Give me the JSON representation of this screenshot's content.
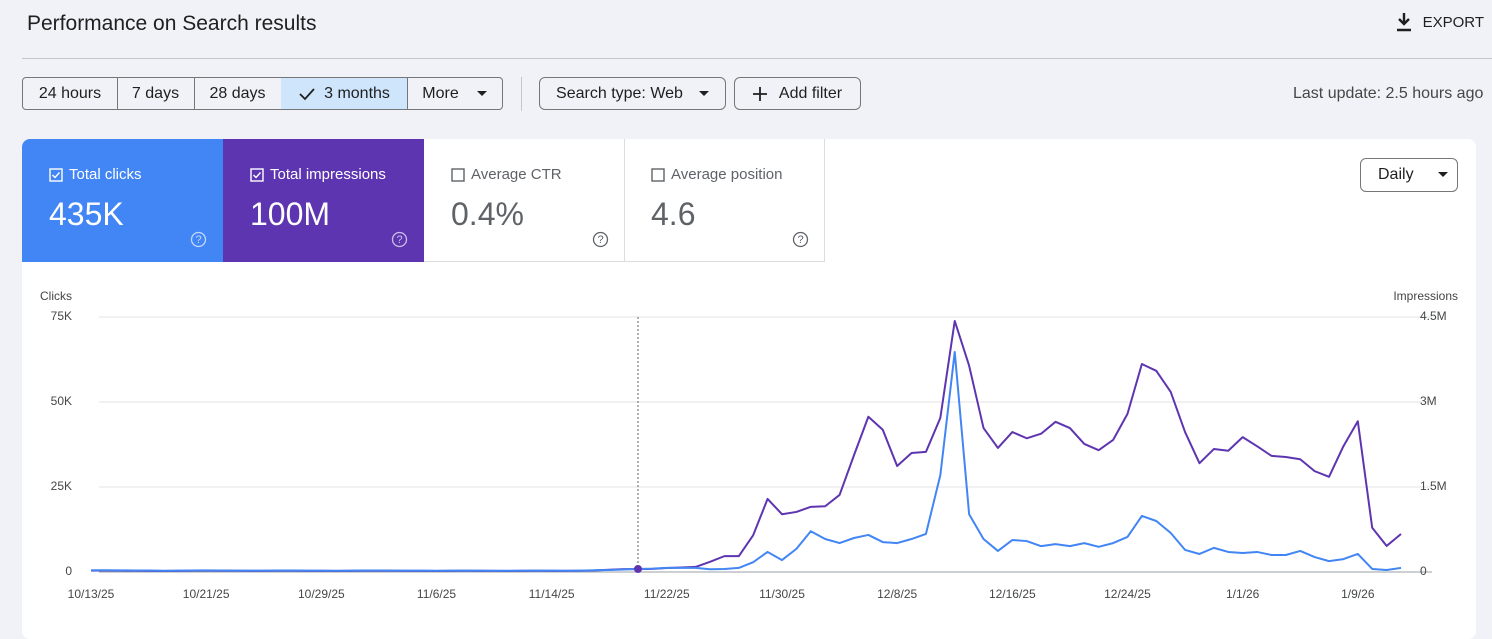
{
  "header": {
    "title": "Performance on Search results",
    "export": "EXPORT"
  },
  "filters": {
    "date_ranges": [
      "24 hours",
      "7 days",
      "28 days",
      "3 months",
      "More"
    ],
    "search_type": "Search type: Web",
    "add_filter": "Add filter",
    "last_update": "Last update: 2.5 hours ago"
  },
  "metrics": [
    {
      "label": "Total clicks",
      "value": "435K"
    },
    {
      "label": "Total impressions",
      "value": "100M"
    },
    {
      "label": "Average CTR",
      "value": "0.4%"
    },
    {
      "label": "Average position",
      "value": "4.6"
    }
  ],
  "granularity": "Daily",
  "chart_data": {
    "type": "line",
    "y_label": "Clicks",
    "y2_label": "Impressions",
    "categories": [
      "10/13/25",
      null,
      null,
      null,
      null,
      null,
      null,
      null,
      "10/21/25",
      null,
      null,
      null,
      null,
      null,
      null,
      null,
      "10/29/25",
      null,
      null,
      null,
      null,
      null,
      null,
      null,
      "11/6/25",
      null,
      null,
      null,
      null,
      null,
      null,
      null,
      "11/14/25",
      null,
      null,
      null,
      null,
      null,
      null,
      null,
      "11/22/25",
      null,
      null,
      null,
      null,
      null,
      null,
      null,
      "11/30/25",
      null,
      null,
      null,
      null,
      null,
      null,
      null,
      "12/8/25",
      null,
      null,
      null,
      null,
      null,
      null,
      null,
      "12/16/25",
      null,
      null,
      null,
      null,
      null,
      null,
      null,
      "12/24/25",
      null,
      null,
      null,
      null,
      null,
      null,
      null,
      "1/1/26",
      null,
      null,
      null,
      null,
      null,
      null,
      null,
      "1/9/26",
      null,
      null,
      null
    ],
    "series": [
      {
        "name": "Total impressions",
        "color": "#5e35b1",
        "axis": "y2",
        "values": [
          25000,
          26000,
          24000,
          22000,
          20000,
          18000,
          19000,
          23000,
          24000,
          22000,
          21000,
          20000,
          19000,
          21000,
          22000,
          20000,
          19000,
          18000,
          20000,
          23000,
          22000,
          21000,
          20000,
          19000,
          18000,
          20000,
          21000,
          20000,
          19000,
          18000,
          19000,
          21000,
          20000,
          19000,
          22000,
          28000,
          40000,
          50000,
          50000,
          55000,
          70000,
          80000,
          90000,
          180000,
          280000,
          280000,
          650000,
          1290000,
          1020000,
          1060000,
          1150000,
          1160000,
          1360000,
          2060000,
          2740000,
          2510000,
          1870000,
          2100000,
          2120000,
          2720000,
          4430000,
          3640000,
          2540000,
          2190000,
          2470000,
          2360000,
          2440000,
          2650000,
          2540000,
          2260000,
          2150000,
          2330000,
          2790000,
          3670000,
          3550000,
          3180000,
          2470000,
          1920000,
          2170000,
          2140000,
          2380000,
          2220000,
          2050000,
          2030000,
          1990000,
          1780000,
          1680000,
          2220000,
          2660000,
          780000,
          460000,
          670000
        ]
      },
      {
        "name": "Total clicks",
        "color": "#4285f4",
        "values": [
          500,
          520,
          480,
          450,
          430,
          380,
          400,
          460,
          470,
          450,
          420,
          410,
          400,
          430,
          440,
          420,
          400,
          380,
          410,
          450,
          430,
          420,
          400,
          390,
          380,
          410,
          420,
          400,
          380,
          370,
          390,
          420,
          400,
          380,
          420,
          500,
          600,
          750,
          900,
          1000,
          1200,
          1200,
          1200,
          800,
          900,
          1200,
          2900,
          5900,
          3500,
          6800,
          12000,
          9700,
          8500,
          10000,
          10900,
          8800,
          8500,
          9700,
          11200,
          28500,
          64700,
          17000,
          9700,
          6200,
          9400,
          9100,
          7600,
          8200,
          7600,
          8500,
          7400,
          8500,
          10300,
          16500,
          15000,
          11500,
          6500,
          5300,
          7100,
          5900,
          5600,
          5900,
          5000,
          5000,
          6200,
          4400,
          3200,
          3800,
          5300,
          900,
          600,
          1200
        ]
      }
    ],
    "ylim": [
      0,
      75000
    ],
    "yticks": [
      0,
      {
        "value": 25000,
        "label": "25K"
      },
      {
        "value": 50000,
        "label": "50K"
      },
      {
        "value": 75000,
        "label": "75K"
      }
    ],
    "y2lim": [
      0,
      4500000
    ],
    "y2ticks": [
      0,
      {
        "value": 1500000,
        "label": "1.5M"
      },
      {
        "value": 3000000,
        "label": "3M"
      },
      {
        "value": 4500000,
        "label": "4.5M"
      }
    ],
    "grid": true
  }
}
